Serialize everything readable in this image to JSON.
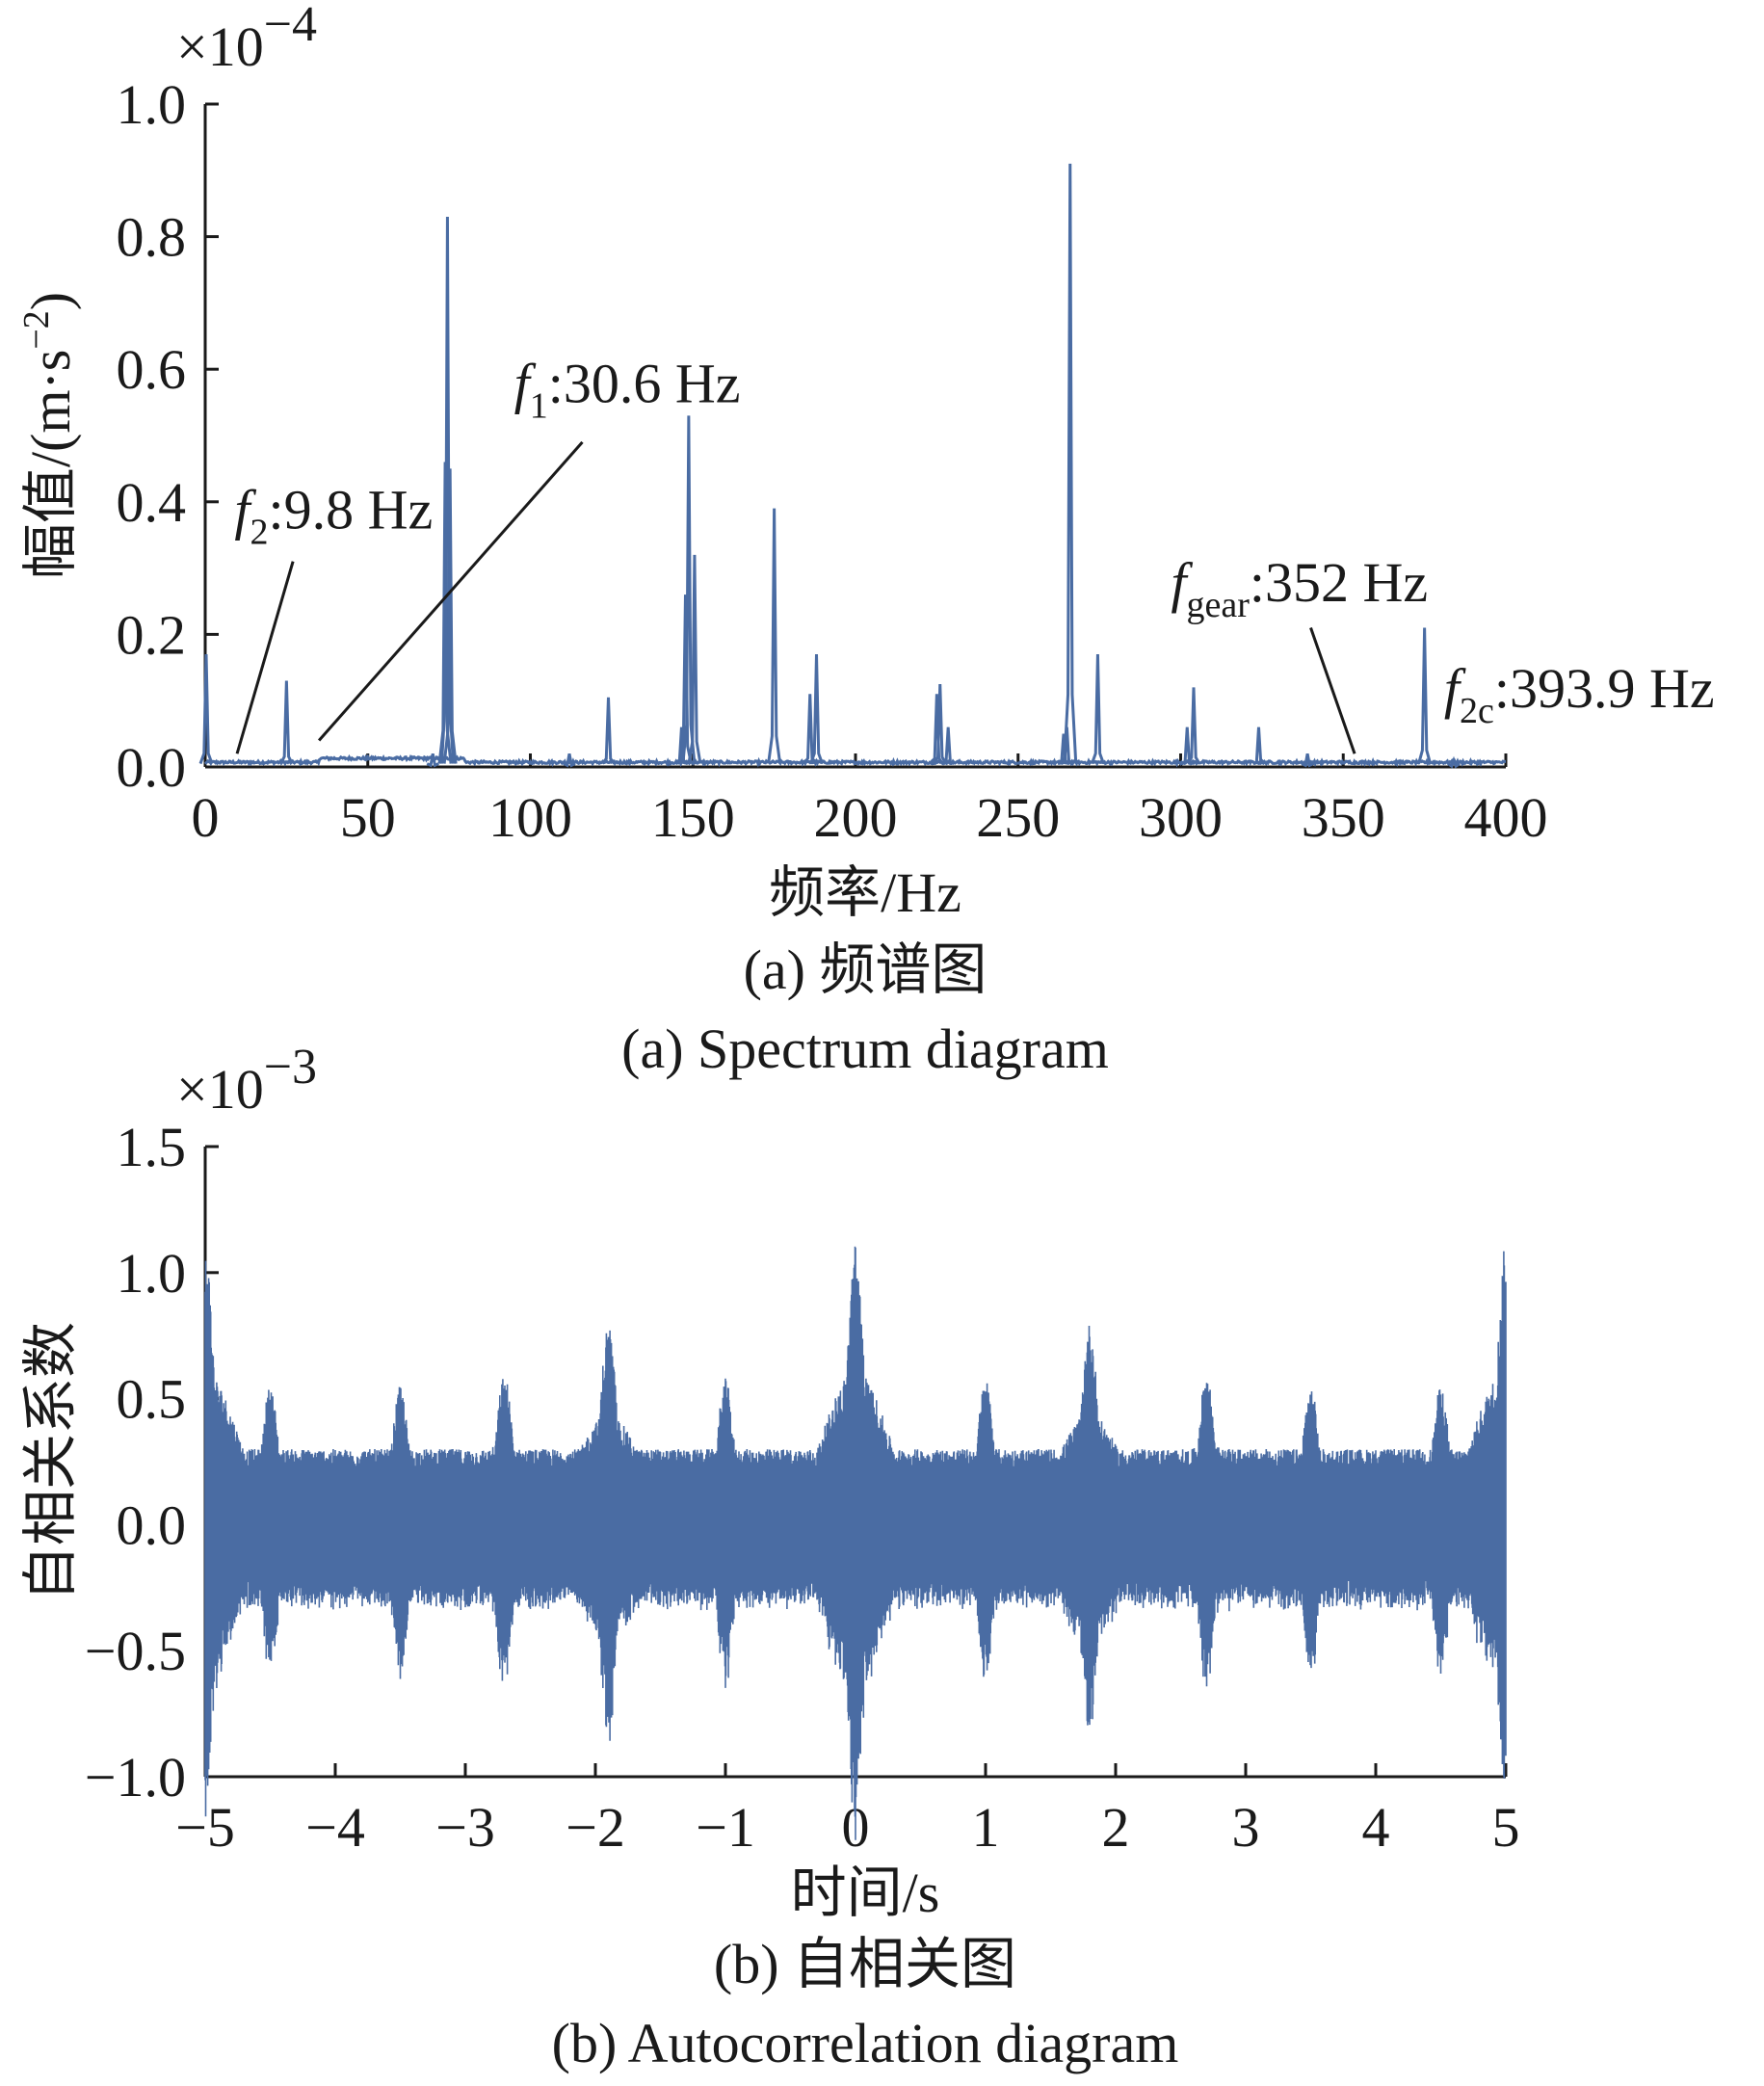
{
  "chart_data": [
    {
      "id": "a",
      "type": "line",
      "caption_cn": "(a) 频谱图",
      "caption_en": "(a) Spectrum diagram",
      "xlabel": "频率/Hz",
      "ylabel": "幅值/(m·s",
      "ylabel_sup": "−2",
      "ylabel_close": ")",
      "y_multiplier": "×10",
      "y_multiplier_exp": "−4",
      "xlim": [
        0,
        400
      ],
      "ylim": [
        0,
        1.0
      ],
      "x_ticks": [
        0,
        50,
        100,
        150,
        200,
        250,
        300,
        350,
        400
      ],
      "x_tick_labels": [
        "0",
        "50",
        "100",
        "150",
        "200",
        "250",
        "300",
        "350",
        "400"
      ],
      "y_ticks": [
        0,
        0.2,
        0.4,
        0.6,
        0.8,
        1.0
      ],
      "y_tick_labels": [
        "0.0",
        "0.2",
        "0.4",
        "0.6",
        "0.8",
        "1.0"
      ],
      "line_color": "#4a6ca3",
      "baseline": 0.005,
      "peaks": [
        {
          "x": 0.3,
          "y": 0.17
        },
        {
          "x": 25,
          "y": 0.13
        },
        {
          "x": 70,
          "y": 0.02
        },
        {
          "x": 73.8,
          "y": 0.46
        },
        {
          "x": 74.5,
          "y": 0.83
        },
        {
          "x": 75.3,
          "y": 0.45
        },
        {
          "x": 112,
          "y": 0.02
        },
        {
          "x": 124,
          "y": 0.105
        },
        {
          "x": 146.5,
          "y": 0.06
        },
        {
          "x": 147.7,
          "y": 0.26
        },
        {
          "x": 148.7,
          "y": 0.53
        },
        {
          "x": 150.5,
          "y": 0.32
        },
        {
          "x": 175,
          "y": 0.39
        },
        {
          "x": 186,
          "y": 0.11
        },
        {
          "x": 188,
          "y": 0.17
        },
        {
          "x": 225,
          "y": 0.11
        },
        {
          "x": 226,
          "y": 0.125
        },
        {
          "x": 228.5,
          "y": 0.06
        },
        {
          "x": 264,
          "y": 0.05
        },
        {
          "x": 265,
          "y": 0.06
        },
        {
          "x": 266,
          "y": 0.91
        },
        {
          "x": 274.5,
          "y": 0.17
        },
        {
          "x": 302,
          "y": 0.06
        },
        {
          "x": 304,
          "y": 0.12
        },
        {
          "x": 324,
          "y": 0.06
        },
        {
          "x": 339,
          "y": 0.02
        },
        {
          "x": 375,
          "y": 0.21
        },
        {
          "x": 384,
          "y": 0.01
        }
      ],
      "annotations": [
        {
          "base": "f",
          "sub": "2",
          "text": ":9.8 Hz",
          "x": 9.8,
          "y": 0.02,
          "label_x": 9.0,
          "label_y": 0.36,
          "line_from": [
            27,
            0.31
          ]
        },
        {
          "base": "f",
          "sub": "1",
          "text": ":30.6 Hz",
          "x": 35,
          "y": 0.04,
          "label_x": 95,
          "label_y": 0.55,
          "line_from": [
            116,
            0.49
          ]
        },
        {
          "base": "f",
          "sub": "gear",
          "text": ":352 Hz",
          "x": 353.5,
          "y": 0.02,
          "label_x": 297,
          "label_y": 0.25,
          "line_from": [
            340,
            0.21
          ]
        },
        {
          "base": "f",
          "sub": "2c",
          "text": ":393.9 Hz",
          "x": 376,
          "y": 0.06,
          "label_x": 381,
          "label_y": 0.09
        }
      ]
    },
    {
      "id": "b",
      "type": "line",
      "caption_cn": "(b) 自相关图",
      "caption_en": "(b) Autocorrelation diagram",
      "xlabel": "时间/s",
      "ylabel": "自相关系数",
      "y_multiplier": "×10",
      "y_multiplier_exp": "−3",
      "xlim": [
        -5,
        5
      ],
      "ylim": [
        -1.0,
        1.5
      ],
      "x_ticks": [
        -5,
        -4,
        -3,
        -2,
        -1,
        0,
        1,
        2,
        3,
        4,
        5
      ],
      "x_tick_labels": [
        "−5",
        "−4",
        "−3",
        "−2",
        "−1",
        "0",
        "1",
        "2",
        "3",
        "4",
        "5"
      ],
      "y_ticks": [
        -1.0,
        -0.5,
        0.0,
        0.5,
        1.0,
        1.5
      ],
      "y_tick_labels": [
        "−1.0",
        "−0.5",
        "0.0",
        "0.5",
        "1.0",
        "1.5"
      ],
      "line_color": "#4a6ca3",
      "base_envelope": 0.3,
      "envelope_bumps": [
        {
          "x": -4.5,
          "y": 0.55
        },
        {
          "x": -3.5,
          "y": 0.55
        },
        {
          "x": -2.7,
          "y": 0.6
        },
        {
          "x": -1.9,
          "y": 0.8
        },
        {
          "x": -1.0,
          "y": 0.58
        },
        {
          "x": 0.0,
          "y": 1.12
        },
        {
          "x": 1.0,
          "y": 0.58
        },
        {
          "x": 1.8,
          "y": 0.8
        },
        {
          "x": 2.7,
          "y": 0.6
        },
        {
          "x": 3.5,
          "y": 0.55
        },
        {
          "x": 4.5,
          "y": 0.55
        },
        {
          "x": -5.0,
          "y": 1.12
        },
        {
          "x": 5.0,
          "y": 1.12
        }
      ]
    }
  ]
}
